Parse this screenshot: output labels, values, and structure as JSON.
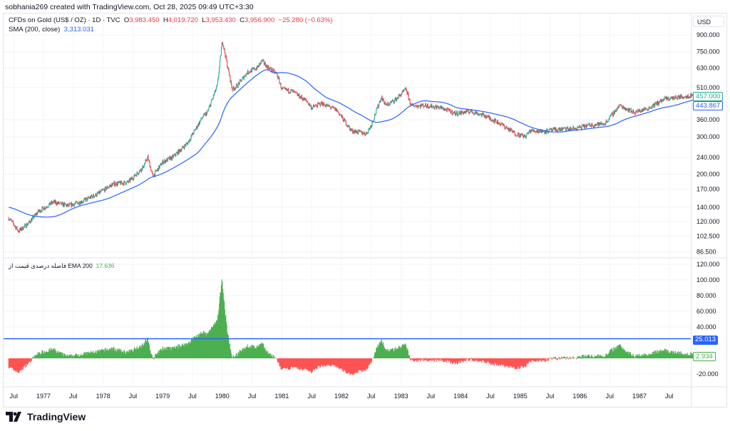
{
  "header": {
    "credit": "sobhania269 created with TradingView.com, Oct 28, 2025 09:49 UTC+3:30"
  },
  "legend": {
    "symbol": "CFDs on Gold (US$ / OZ) · 1D · TVC",
    "o_label": "O",
    "open": "3,983.450",
    "h_label": "H",
    "high": "4,019.720",
    "l_label": "L",
    "low": "3,953.430",
    "c_label": "C",
    "close": "3,956.900",
    "change": "−25.280 (−0.63%)",
    "sma_label": "SMA (200, close)",
    "sma_value": "3,313.031",
    "osc_label": "فاصله درصدی قیمت از EMA 200",
    "osc_value": "17.636"
  },
  "currency": "USD",
  "footer": {
    "brand": "TradingView"
  },
  "colors": {
    "up": "#22ab94",
    "down": "#f23645",
    "sma": "#2962ff",
    "hist_pos": "#4caf50",
    "hist_neg": "#ff5252",
    "level": "#2962ff"
  },
  "chart_data": [
    {
      "type": "candlestick",
      "scale": "log",
      "ylim": [
        86.5,
        900
      ],
      "grid": true,
      "y_ticks": [
        "900.000",
        "750.000",
        "630.000",
        "510.000",
        "360.000",
        "300.000",
        "240.000",
        "200.000",
        "170.000",
        "140.000",
        "120.000",
        "102.500",
        "86.500"
      ],
      "price_path": [
        [
          "1976-06",
          125
        ],
        [
          "1976-08",
          108
        ],
        [
          "1976-10",
          118
        ],
        [
          "1976-12",
          134
        ],
        [
          "1977-03",
          148
        ],
        [
          "1977-06",
          142
        ],
        [
          "1977-09",
          150
        ],
        [
          "1977-12",
          162
        ],
        [
          "1978-03",
          180
        ],
        [
          "1978-06",
          183
        ],
        [
          "1978-09",
          215
        ],
        [
          "1978-10",
          240
        ],
        [
          "1978-11",
          195
        ],
        [
          "1979-01",
          228
        ],
        [
          "1979-03",
          240
        ],
        [
          "1979-06",
          280
        ],
        [
          "1979-09",
          370
        ],
        [
          "1979-10",
          390
        ],
        [
          "1979-12",
          520
        ],
        [
          "1980-01",
          850
        ],
        [
          "1980-02",
          650
        ],
        [
          "1980-03",
          500
        ],
        [
          "1980-04",
          520
        ],
        [
          "1980-06",
          600
        ],
        [
          "1980-08",
          630
        ],
        [
          "1980-09",
          680
        ],
        [
          "1980-10",
          640
        ],
        [
          "1980-12",
          590
        ],
        [
          "1981-01",
          500
        ],
        [
          "1981-03",
          490
        ],
        [
          "1981-06",
          440
        ],
        [
          "1981-07",
          410
        ],
        [
          "1981-09",
          430
        ],
        [
          "1981-12",
          400
        ],
        [
          "1982-03",
          320
        ],
        [
          "1982-06",
          310
        ],
        [
          "1982-07",
          340
        ],
        [
          "1982-09",
          460
        ],
        [
          "1982-10",
          420
        ],
        [
          "1982-12",
          450
        ],
        [
          "1983-02",
          500
        ],
        [
          "1983-03",
          420
        ],
        [
          "1983-06",
          420
        ],
        [
          "1983-09",
          410
        ],
        [
          "1983-12",
          385
        ],
        [
          "1984-03",
          395
        ],
        [
          "1984-06",
          375
        ],
        [
          "1984-09",
          345
        ],
        [
          "1984-12",
          310
        ],
        [
          "1985-02",
          300
        ],
        [
          "1985-03",
          320
        ],
        [
          "1985-06",
          318
        ],
        [
          "1985-09",
          325
        ],
        [
          "1985-12",
          327
        ],
        [
          "1986-03",
          340
        ],
        [
          "1986-06",
          345
        ],
        [
          "1986-09",
          420
        ],
        [
          "1986-12",
          390
        ],
        [
          "1987-03",
          410
        ],
        [
          "1987-06",
          450
        ],
        [
          "1987-09",
          460
        ],
        [
          "1987-12",
          470
        ]
      ],
      "last_price": "457.000",
      "sma_last": "443.867",
      "series": [
        {
          "name": "SMA (200, close)"
        }
      ]
    },
    {
      "type": "histogram",
      "ylim": [
        -30,
        125
      ],
      "grid": true,
      "y_ticks": [
        "120.000",
        "100.000",
        "80.000",
        "60.000",
        "40.000",
        "-20.000"
      ],
      "level": 25.013,
      "level_label": "25.013",
      "last_label": "2.934",
      "series": [
        {
          "name": "EMA 200"
        }
      ]
    }
  ],
  "x_ticks": [
    "Jul",
    "1977",
    "Jul",
    "1978",
    "Jul",
    "1979",
    "Jul",
    "1980",
    "Jul",
    "1981",
    "Jul",
    "1982",
    "Jul",
    "1983",
    "Jul",
    "1984",
    "Jul",
    "1985",
    "Jul",
    "1986",
    "Jul",
    "1987",
    "Jul"
  ]
}
